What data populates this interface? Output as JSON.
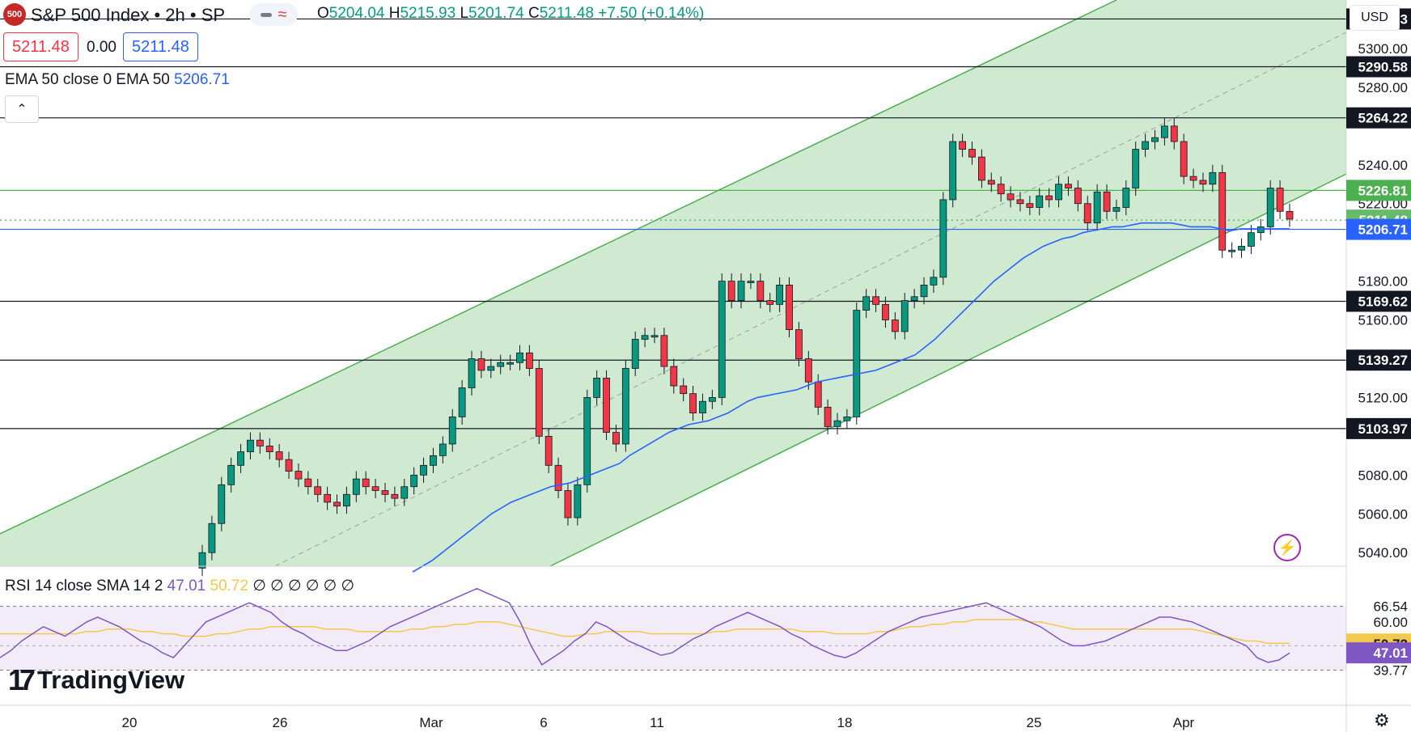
{
  "header": {
    "logo": "500",
    "title": "S&P 500 Index • 2h • SP",
    "open_label": "O",
    "open": "5204.04",
    "high_label": "H",
    "high": "5215.93",
    "low_label": "L",
    "low": "5201.74",
    "close_label": "C",
    "close": "5211.48",
    "change": "+7.50 (+0.14%)",
    "sell_price": "5211.48",
    "spread": "0.00",
    "buy_price": "5211.48",
    "ema_label": "EMA 50 close 0 EMA 50",
    "ema_value": "5206.71",
    "collapse_icon": "chevron-up-icon",
    "currency": "USD"
  },
  "rsi": {
    "label": "RSI 14 close SMA 14 2",
    "rsi_value": "47.01",
    "sma_value": "50.72",
    "extra": "∅ ∅ ∅ ∅ ∅ ∅"
  },
  "brand": {
    "name": "TradingView"
  },
  "colors": {
    "up": "#089981",
    "down": "#f23645",
    "ema": "#2962ff",
    "rsi": "#7e57c2",
    "rsi_ma": "#f2c94c",
    "channel": "#4caf50",
    "channel_fill": "#c8e6c9"
  },
  "chart_data": {
    "type": "candlestick",
    "title": "S&P 500 Index • 2h • SP",
    "y_axis_ticks": [
      "5300.00",
      "5280.00",
      "5240.00",
      "5220.00",
      "5180.00",
      "5160.00",
      "5120.00",
      "5080.00",
      "5060.00",
      "5040.00"
    ],
    "x_axis_ticks": [
      "20",
      "26",
      "Mar",
      "6",
      "11",
      "18",
      "25",
      "Apr"
    ],
    "ylim": [
      5033,
      5325
    ],
    "horizontal_levels": [
      {
        "label": "5315.23",
        "value": 5315.23,
        "color": "#131722"
      },
      {
        "label": "5290.58",
        "value": 5290.58,
        "color": "#131722"
      },
      {
        "label": "5264.22",
        "value": 5264.22,
        "color": "#131722"
      },
      {
        "label": "5226.81",
        "value": 5226.81,
        "color": "#4caf50"
      },
      {
        "label": "5211.48",
        "value": 5211.48,
        "color": "#4caf50"
      },
      {
        "label": "5206.71",
        "value": 5206.71,
        "color": "#2962ff"
      },
      {
        "label": "5169.62",
        "value": 5169.62,
        "color": "#131722"
      },
      {
        "label": "5139.27",
        "value": 5139.27,
        "color": "#131722"
      },
      {
        "label": "5103.97",
        "value": 5103.97,
        "color": "#131722"
      }
    ],
    "closes": [
      5040,
      5055,
      5075,
      5085,
      5092,
      5098,
      5095,
      5092,
      5088,
      5082,
      5078,
      5074,
      5070,
      5066,
      5064,
      5070,
      5078,
      5074,
      5072,
      5070,
      5068,
      5074,
      5080,
      5085,
      5090,
      5096,
      5110,
      5125,
      5140,
      5134,
      5136,
      5138,
      5138,
      5143,
      5135,
      5100,
      5085,
      5072,
      5058,
      5075,
      5120,
      5130,
      5102,
      5096,
      5135,
      5150,
      5152,
      5152,
      5136,
      5126,
      5122,
      5112,
      5118,
      5120,
      5180,
      5170,
      5180,
      5180,
      5170,
      5168,
      5178,
      5155,
      5140,
      5128,
      5115,
      5105,
      5108,
      5110,
      5165,
      5172,
      5168,
      5160,
      5154,
      5170,
      5172,
      5178,
      5182,
      5222,
      5252,
      5248,
      5244,
      5232,
      5230,
      5225,
      5222,
      5220,
      5218,
      5224,
      5222,
      5230,
      5228,
      5220,
      5210,
      5226,
      5216,
      5218,
      5228,
      5248,
      5252,
      5254,
      5260,
      5252,
      5234,
      5232,
      5230,
      5236,
      5196,
      5196,
      5198,
      5205,
      5208,
      5228,
      5216,
      5212
    ],
    "ema50": [
      5030,
      5033,
      5036,
      5040,
      5044,
      5048,
      5052,
      5056,
      5060,
      5063,
      5066,
      5068,
      5070,
      5072,
      5074,
      5075,
      5076,
      5078,
      5080,
      5082,
      5084,
      5086,
      5090,
      5093,
      5096,
      5099,
      5102,
      5104,
      5106,
      5107,
      5108,
      5110,
      5112,
      5115,
      5118,
      5120,
      5121,
      5122,
      5123,
      5124,
      5126,
      5128,
      5129,
      5130,
      5131,
      5132,
      5133,
      5134,
      5136,
      5138,
      5140,
      5142,
      5146,
      5150,
      5155,
      5160,
      5165,
      5170,
      5175,
      5180,
      5184,
      5188,
      5192,
      5195,
      5198,
      5200,
      5202,
      5203,
      5205,
      5206,
      5207,
      5208,
      5208,
      5209,
      5210,
      5210,
      5210,
      5210,
      5209,
      5208,
      5208,
      5208,
      5207,
      5206,
      5207,
      5207,
      5207,
      5207,
      5207,
      5207
    ],
    "rsi_upper": 66.54,
    "rsi_lower": 39.77,
    "rsi_ticks": [
      "66.54",
      "60.00",
      "39.77"
    ],
    "rsi_values": [
      45,
      48,
      52,
      55,
      58,
      56,
      54,
      57,
      60,
      62,
      60,
      58,
      55,
      52,
      50,
      47,
      45,
      50,
      55,
      60,
      62,
      64,
      66,
      68,
      66,
      64,
      60,
      57,
      55,
      52,
      50,
      48,
      48,
      50,
      52,
      55,
      58,
      60,
      62,
      64,
      66,
      68,
      70,
      72,
      74,
      72,
      70,
      68,
      60,
      50,
      42,
      45,
      48,
      52,
      55,
      60,
      58,
      55,
      52,
      50,
      48,
      46,
      47,
      50,
      53,
      55,
      58,
      60,
      62,
      64,
      62,
      60,
      58,
      55,
      53,
      50,
      48,
      46,
      45,
      47,
      50,
      53,
      56,
      58,
      60,
      62,
      63,
      64,
      65,
      66,
      67,
      68,
      66,
      64,
      62,
      60,
      58,
      55,
      52,
      50,
      50,
      51,
      52,
      54,
      56,
      58,
      60,
      62,
      62,
      61,
      60,
      58,
      56,
      54,
      52,
      50,
      45,
      43,
      44,
      47
    ],
    "rsi_sma_values": [
      55,
      55,
      55,
      55,
      55,
      55,
      55,
      55,
      56,
      56,
      57,
      57,
      57,
      56,
      56,
      55,
      55,
      54,
      54,
      54,
      55,
      55,
      56,
      57,
      57,
      58,
      58,
      58,
      58,
      58,
      57,
      57,
      57,
      56,
      56,
      56,
      56,
      56,
      57,
      57,
      58,
      58,
      59,
      59,
      60,
      60,
      60,
      59,
      58,
      57,
      56,
      55,
      54,
      54,
      55,
      55,
      56,
      56,
      56,
      56,
      55,
      55,
      55,
      55,
      55,
      55,
      56,
      56,
      57,
      57,
      57,
      57,
      57,
      57,
      56,
      56,
      56,
      55,
      55,
      55,
      55,
      56,
      56,
      57,
      58,
      58,
      59,
      59,
      60,
      60,
      61,
      61,
      61,
      61,
      61,
      60,
      60,
      59,
      58,
      57,
      57,
      57,
      57,
      57,
      57,
      57,
      57,
      57,
      57,
      57,
      57,
      56,
      55,
      54,
      53,
      52,
      52,
      51,
      51,
      51
    ]
  }
}
